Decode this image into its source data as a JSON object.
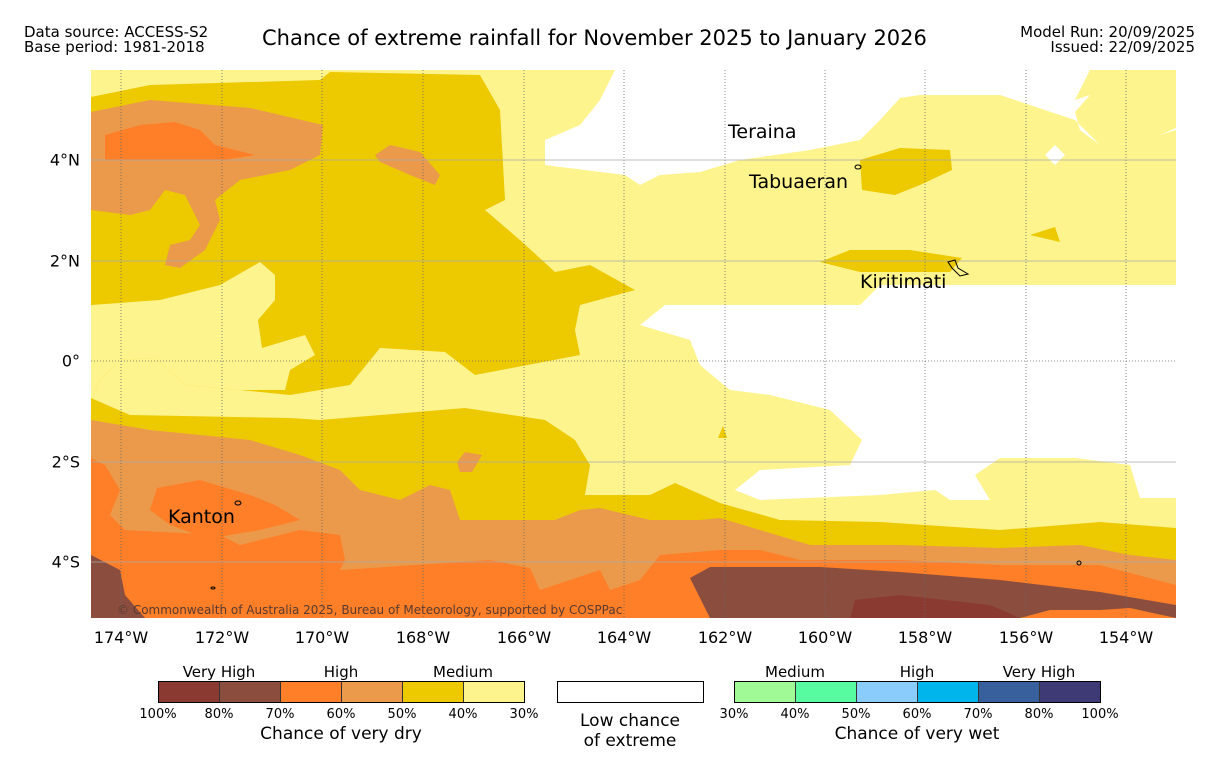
{
  "header": {
    "data_source": "Data source: ACCESS-S2",
    "base_period": "Base period: 1981-2018",
    "title": "Chance of extreme rainfall for November 2025 to January 2026",
    "model_run": "Model Run: 20/09/2025",
    "issued": "Issued: 22/09/2025"
  },
  "map": {
    "lon_labels": [
      "174°W",
      "172°W",
      "170°W",
      "168°W",
      "166°W",
      "164°W",
      "162°W",
      "160°W",
      "158°W",
      "156°W",
      "154°W"
    ],
    "lat_labels": [
      "4°N",
      "2°N",
      "0°",
      "2°S",
      "4°S"
    ],
    "places": [
      "Teraina",
      "Tabuaeran",
      "Kiritimati",
      "Kanton"
    ],
    "copyright": "© Commonwealth of Australia 2025, Bureau of Meteorology, supported by COSPPac"
  },
  "legend": {
    "dry": {
      "groups": [
        "Very High",
        "High",
        "Medium"
      ],
      "ticks": [
        "100%",
        "80%",
        "70%",
        "60%",
        "50%",
        "40%",
        "30%"
      ],
      "caption": "Chance of very dry",
      "colors": [
        "#8b3a32",
        "#8b4e3e",
        "#fe7f27",
        "#eb9a4b",
        "#edc900",
        "#fdf48d"
      ]
    },
    "low": {
      "line1": "Low chance",
      "line2": "of extreme"
    },
    "wet": {
      "groups": [
        "Medium",
        "High",
        "Very High"
      ],
      "ticks": [
        "30%",
        "40%",
        "50%",
        "60%",
        "70%",
        "80%",
        "100%"
      ],
      "caption": "Chance of very wet",
      "colors": [
        "#a0fa96",
        "#58fca0",
        "#8acdfc",
        "#00b4ec",
        "#38609c",
        "#3e3a76"
      ]
    }
  }
}
